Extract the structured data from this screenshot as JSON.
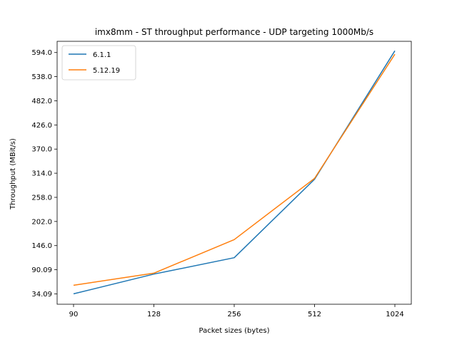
{
  "chart_data": {
    "type": "line",
    "title": "imx8mm - ST throughput performance - UDP targeting 1000Mb/s",
    "xlabel": "Packet sizes (bytes)",
    "ylabel": "Throughput (MBit/s)",
    "categories": [
      "90",
      "128",
      "256",
      "512",
      "1024"
    ],
    "yticks": [
      "34.09",
      "90.09",
      "146.0",
      "202.0",
      "258.0",
      "314.0",
      "370.0",
      "426.0",
      "482.0",
      "538.0",
      "594.0"
    ],
    "ylim": [
      10,
      620
    ],
    "grid": false,
    "legend_position": "top-left",
    "series": [
      {
        "name": "6.1.1",
        "color": "#1f77b4",
        "values": [
          34.09,
          80.0,
          118.0,
          300.0,
          598.0
        ]
      },
      {
        "name": "5.12.19",
        "color": "#ff7f0e",
        "values": [
          54.0,
          82.0,
          160.0,
          302.0,
          590.0
        ]
      }
    ]
  }
}
